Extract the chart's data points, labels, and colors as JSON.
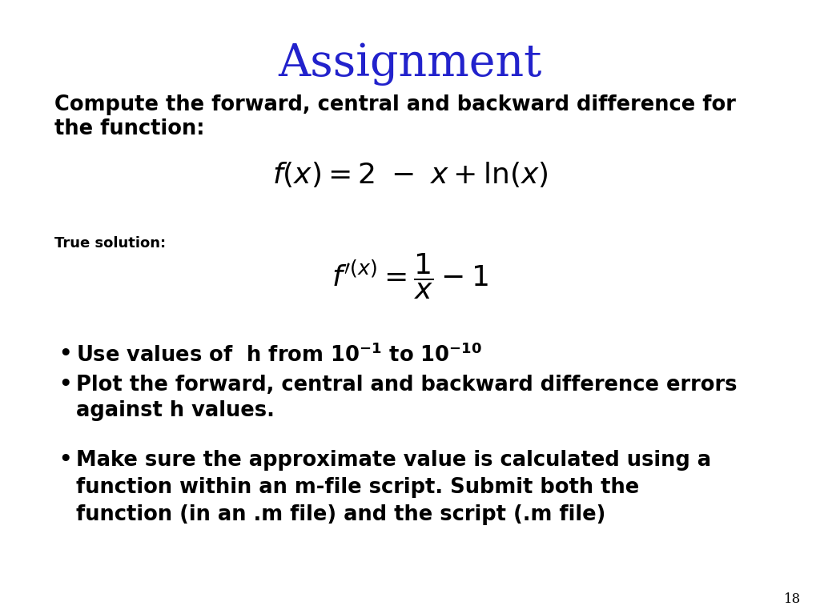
{
  "title": "Assignment",
  "title_color": "#2222cc",
  "title_fontsize": 40,
  "background_color": "#ffffff",
  "page_number": "18",
  "body_text_color": "#000000",
  "intro_line1": "Compute the forward, central and backward difference for",
  "intro_line2": "the function:",
  "intro_fontsize": 18.5,
  "formula1_fontsize": 26,
  "true_solution_label": "True solution:",
  "true_solution_fontsize": 13,
  "formula2_fontsize": 26,
  "bullet_fontsize": 18.5,
  "bullet2_line1": "Plot the forward, central and backward difference errors",
  "bullet2_line2": "against h values.",
  "bullet3_line1": "Make sure the approximate value is calculated using a",
  "bullet3_line2": "function within an m-file script. Submit both the",
  "bullet3_line3": "function (in an .m file) and the script (.m file)"
}
